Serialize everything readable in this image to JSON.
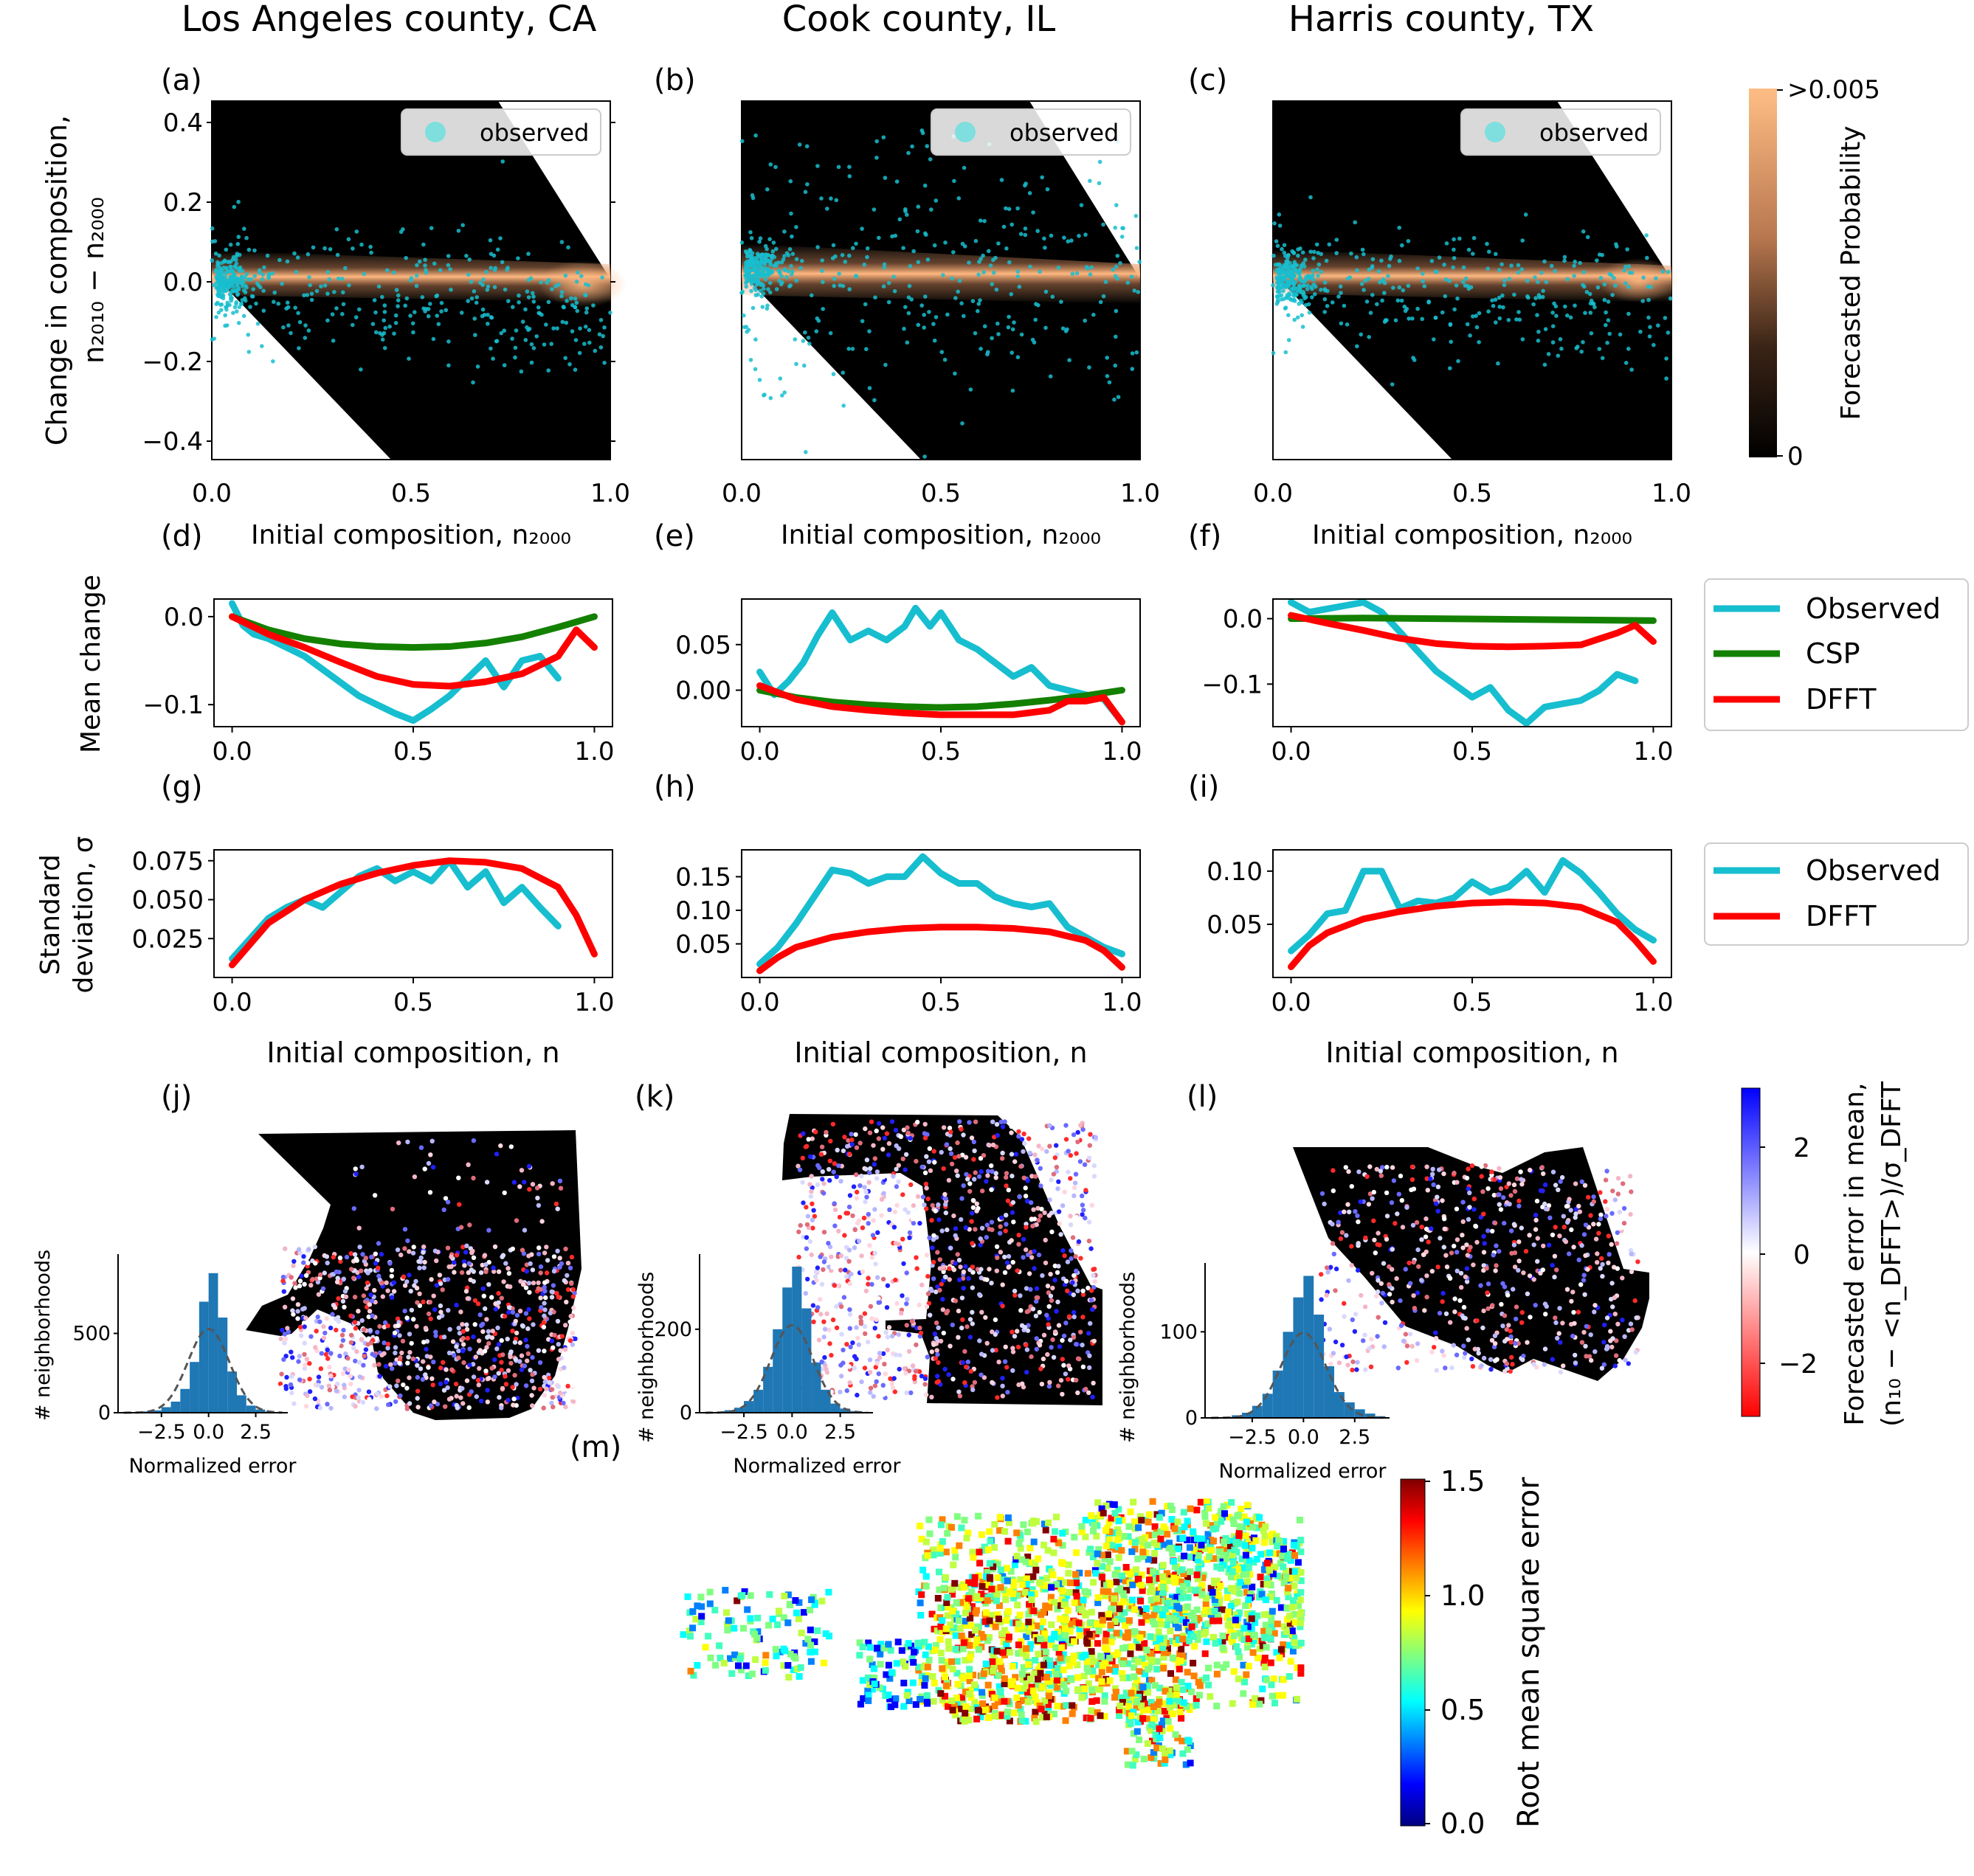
{
  "columns": [
    {
      "title": "Los Angeles county, CA"
    },
    {
      "title": "Cook county, IL"
    },
    {
      "title": "Harris county, TX"
    }
  ],
  "panel_labels": [
    "(a)",
    "(b)",
    "(c)",
    "(d)",
    "(e)",
    "(f)",
    "(g)",
    "(h)",
    "(i)",
    "(j)",
    "(k)",
    "(l)",
    "(m)"
  ],
  "row1": {
    "ylabel_line1": "Change in composition,",
    "ylabel_line2": "n₂₀₁₀ − n₂₀₀₀",
    "xlabel": "Initial composition, n₂₀₀₀",
    "legend": "observed",
    "colorbar_label": "Forecasted Probability",
    "colorbar_top": ">0.005",
    "colorbar_bottom": "0"
  },
  "row2": {
    "ylabel": "Mean change",
    "legend": [
      "Observed",
      "CSP",
      "DFFT"
    ]
  },
  "row3": {
    "ylabel_line1": "Standard",
    "ylabel_line2": "deviation, σ",
    "xlabel": "Initial composition, n",
    "legend": [
      "Observed",
      "DFFT"
    ]
  },
  "row4": {
    "hist_ylabel": "# neighborhoods",
    "hist_xlabel": "Normalized error",
    "colorbar_label_line1": "Forecasted error in mean,",
    "colorbar_label_line2": "(n₁₀ − <n_DFFT>)/σ_DFFT"
  },
  "us_map": {
    "colorbar_label": "Root mean square error"
  },
  "colors": {
    "observed": "#17becf",
    "csp": "#138000",
    "dfft": "#ff0000",
    "heat": "#ffb880",
    "hist": "#1f77b4"
  },
  "chart_data": [
    {
      "type": "heatmap",
      "panel": "(a)",
      "title": "Los Angeles county, CA",
      "xlim": [
        0,
        1
      ],
      "ylim": [
        -0.45,
        0.45
      ],
      "xticks": [
        "0.0",
        "0.5",
        "1.0"
      ],
      "yticks": [
        "−0.4",
        "−0.2",
        "0.0",
        "0.2",
        "0.4"
      ],
      "density_band": [
        [
          0,
          0.0
        ],
        [
          0.5,
          -0.01
        ],
        [
          1,
          -0.02
        ]
      ]
    },
    {
      "type": "heatmap",
      "panel": "(b)",
      "title": "Cook county, IL",
      "xlim": [
        0,
        1
      ],
      "ylim": [
        -0.45,
        0.45
      ],
      "xticks": [
        "0.0",
        "0.5",
        "1.0"
      ],
      "density_band": [
        [
          0,
          0.02
        ],
        [
          0.5,
          0.0
        ],
        [
          1,
          -0.02
        ]
      ]
    },
    {
      "type": "heatmap",
      "panel": "(c)",
      "title": "Harris county, TX",
      "xlim": [
        0,
        1
      ],
      "ylim": [
        -0.45,
        0.45
      ],
      "xticks": [
        "0.0",
        "0.5",
        "1.0"
      ],
      "density_band": [
        [
          0,
          0.01
        ],
        [
          0.5,
          -0.01
        ],
        [
          1,
          -0.02
        ]
      ]
    },
    {
      "type": "line",
      "panel": "(d)",
      "xlim": [
        -0.05,
        1.05
      ],
      "ylim": [
        -0.125,
        0.02
      ],
      "xticks": [
        "0.0",
        "0.5",
        "1.0"
      ],
      "yticks": [
        {
          "v": 0,
          "t": "0.0"
        },
        {
          "v": -0.1,
          "t": "−0.1"
        }
      ],
      "series": [
        {
          "name": "Observed",
          "x": [
            0,
            0.03,
            0.06,
            0.1,
            0.15,
            0.2,
            0.25,
            0.3,
            0.35,
            0.4,
            0.45,
            0.5,
            0.55,
            0.6,
            0.65,
            0.7,
            0.75,
            0.8,
            0.85,
            0.9
          ],
          "y": [
            0.015,
            -0.01,
            -0.02,
            -0.025,
            -0.035,
            -0.045,
            -0.06,
            -0.075,
            -0.09,
            -0.1,
            -0.11,
            -0.118,
            -0.105,
            -0.09,
            -0.07,
            -0.05,
            -0.08,
            -0.05,
            -0.045,
            -0.07
          ]
        },
        {
          "name": "CSP",
          "x": [
            0,
            0.1,
            0.2,
            0.3,
            0.4,
            0.5,
            0.6,
            0.7,
            0.8,
            0.9,
            1.0
          ],
          "y": [
            0.0,
            -0.015,
            -0.025,
            -0.031,
            -0.034,
            -0.035,
            -0.034,
            -0.03,
            -0.023,
            -0.012,
            0.0
          ]
        },
        {
          "name": "DFFT",
          "x": [
            0,
            0.1,
            0.2,
            0.3,
            0.4,
            0.5,
            0.6,
            0.7,
            0.8,
            0.9,
            0.95,
            1.0
          ],
          "y": [
            0.0,
            -0.02,
            -0.035,
            -0.052,
            -0.068,
            -0.077,
            -0.079,
            -0.074,
            -0.065,
            -0.045,
            -0.015,
            -0.035
          ]
        }
      ]
    },
    {
      "type": "line",
      "panel": "(e)",
      "xlim": [
        -0.05,
        1.05
      ],
      "ylim": [
        -0.04,
        0.1
      ],
      "xticks": [
        "0.0",
        "0.5",
        "1.0"
      ],
      "yticks": [
        {
          "v": 0.05,
          "t": "0.05"
        },
        {
          "v": 0,
          "t": "0.00"
        }
      ],
      "series": [
        {
          "name": "Observed",
          "x": [
            0,
            0.04,
            0.08,
            0.12,
            0.16,
            0.2,
            0.25,
            0.3,
            0.35,
            0.4,
            0.43,
            0.47,
            0.5,
            0.55,
            0.6,
            0.65,
            0.7,
            0.75,
            0.8,
            0.85,
            0.9,
            0.95,
            1.0
          ],
          "y": [
            0.02,
            -0.005,
            0.01,
            0.03,
            0.06,
            0.085,
            0.055,
            0.065,
            0.055,
            0.07,
            0.09,
            0.07,
            0.085,
            0.055,
            0.045,
            0.03,
            0.015,
            0.025,
            0.005,
            0.0,
            -0.005,
            -0.01,
            -0.035
          ]
        },
        {
          "name": "CSP",
          "x": [
            0,
            0.1,
            0.2,
            0.3,
            0.4,
            0.5,
            0.6,
            0.7,
            0.8,
            0.9,
            1.0
          ],
          "y": [
            0.0,
            -0.008,
            -0.013,
            -0.016,
            -0.018,
            -0.019,
            -0.018,
            -0.015,
            -0.011,
            -0.006,
            0.0
          ]
        },
        {
          "name": "DFFT",
          "x": [
            0,
            0.1,
            0.2,
            0.3,
            0.4,
            0.5,
            0.6,
            0.7,
            0.8,
            0.85,
            0.9,
            0.95,
            1.0
          ],
          "y": [
            0.005,
            -0.01,
            -0.018,
            -0.022,
            -0.025,
            -0.027,
            -0.027,
            -0.027,
            -0.022,
            -0.012,
            -0.012,
            -0.008,
            -0.035
          ]
        }
      ]
    },
    {
      "type": "line",
      "panel": "(f)",
      "xlim": [
        -0.05,
        1.05
      ],
      "ylim": [
        -0.165,
        0.03
      ],
      "xticks": [
        "0.0",
        "0.5",
        "1.0"
      ],
      "yticks": [
        {
          "v": 0,
          "t": "0.0"
        },
        {
          "v": -0.1,
          "t": "−0.1"
        }
      ],
      "series": [
        {
          "name": "Observed",
          "x": [
            0,
            0.05,
            0.1,
            0.15,
            0.2,
            0.25,
            0.3,
            0.35,
            0.4,
            0.45,
            0.5,
            0.55,
            0.6,
            0.65,
            0.7,
            0.75,
            0.8,
            0.85,
            0.9,
            0.95
          ],
          "y": [
            0.025,
            0.01,
            0.015,
            0.02,
            0.025,
            0.01,
            -0.02,
            -0.05,
            -0.08,
            -0.1,
            -0.12,
            -0.105,
            -0.14,
            -0.16,
            -0.135,
            -0.13,
            -0.125,
            -0.11,
            -0.085,
            -0.095
          ]
        },
        {
          "name": "CSP",
          "x": [
            0,
            0.2,
            0.4,
            0.6,
            0.8,
            1.0
          ],
          "y": [
            0.0,
            0.001,
            0.0,
            -0.001,
            -0.002,
            -0.003
          ]
        },
        {
          "name": "DFFT",
          "x": [
            0,
            0.1,
            0.2,
            0.3,
            0.4,
            0.5,
            0.6,
            0.7,
            0.8,
            0.9,
            0.95,
            1.0
          ],
          "y": [
            0.005,
            -0.007,
            -0.018,
            -0.03,
            -0.038,
            -0.042,
            -0.043,
            -0.042,
            -0.04,
            -0.022,
            -0.01,
            -0.035
          ]
        }
      ]
    },
    {
      "type": "line",
      "panel": "(g)",
      "xlim": [
        -0.05,
        1.05
      ],
      "ylim": [
        0.0,
        0.082
      ],
      "xticks": [
        "0.0",
        "0.5",
        "1.0"
      ],
      "yticks": [
        {
          "v": 0.075,
          "t": "0.075"
        },
        {
          "v": 0.05,
          "t": "0.050"
        },
        {
          "v": 0.025,
          "t": "0.025"
        }
      ],
      "series": [
        {
          "name": "Observed",
          "x": [
            0,
            0.05,
            0.1,
            0.15,
            0.2,
            0.25,
            0.3,
            0.35,
            0.4,
            0.45,
            0.5,
            0.55,
            0.6,
            0.65,
            0.7,
            0.75,
            0.8,
            0.85,
            0.9
          ],
          "y": [
            0.012,
            0.025,
            0.038,
            0.045,
            0.05,
            0.045,
            0.055,
            0.065,
            0.07,
            0.062,
            0.068,
            0.062,
            0.075,
            0.058,
            0.068,
            0.048,
            0.058,
            0.045,
            0.033
          ]
        },
        {
          "name": "DFFT",
          "x": [
            0,
            0.1,
            0.2,
            0.3,
            0.4,
            0.5,
            0.6,
            0.7,
            0.8,
            0.9,
            0.95,
            1.0
          ],
          "y": [
            0.008,
            0.035,
            0.05,
            0.06,
            0.067,
            0.072,
            0.075,
            0.074,
            0.07,
            0.058,
            0.04,
            0.015
          ]
        }
      ]
    },
    {
      "type": "line",
      "panel": "(h)",
      "xlim": [
        -0.05,
        1.05
      ],
      "ylim": [
        0.0,
        0.19
      ],
      "xticks": [
        "0.0",
        "0.5",
        "1.0"
      ],
      "yticks": [
        {
          "v": 0.15,
          "t": "0.15"
        },
        {
          "v": 0.1,
          "t": "0.10"
        },
        {
          "v": 0.05,
          "t": "0.05"
        }
      ],
      "series": [
        {
          "name": "Observed",
          "x": [
            0,
            0.05,
            0.1,
            0.15,
            0.2,
            0.25,
            0.3,
            0.35,
            0.4,
            0.45,
            0.5,
            0.55,
            0.6,
            0.65,
            0.7,
            0.75,
            0.8,
            0.85,
            0.9,
            0.95,
            1.0
          ],
          "y": [
            0.02,
            0.045,
            0.08,
            0.12,
            0.16,
            0.155,
            0.14,
            0.15,
            0.15,
            0.18,
            0.155,
            0.14,
            0.14,
            0.12,
            0.11,
            0.105,
            0.11,
            0.075,
            0.06,
            0.045,
            0.035
          ]
        },
        {
          "name": "DFFT",
          "x": [
            0,
            0.05,
            0.1,
            0.2,
            0.3,
            0.4,
            0.5,
            0.6,
            0.7,
            0.8,
            0.9,
            0.95,
            1.0
          ],
          "y": [
            0.01,
            0.03,
            0.045,
            0.06,
            0.068,
            0.073,
            0.075,
            0.075,
            0.073,
            0.068,
            0.055,
            0.04,
            0.015
          ]
        }
      ]
    },
    {
      "type": "line",
      "panel": "(i)",
      "xlim": [
        -0.05,
        1.05
      ],
      "ylim": [
        0.0,
        0.12
      ],
      "xticks": [
        "0.0",
        "0.5",
        "1.0"
      ],
      "yticks": [
        {
          "v": 0.1,
          "t": "0.10"
        },
        {
          "v": 0.05,
          "t": "0.05"
        }
      ],
      "series": [
        {
          "name": "Observed",
          "x": [
            0,
            0.05,
            0.1,
            0.15,
            0.2,
            0.25,
            0.3,
            0.35,
            0.4,
            0.45,
            0.5,
            0.55,
            0.6,
            0.65,
            0.7,
            0.75,
            0.8,
            0.85,
            0.9,
            0.95,
            1.0
          ],
          "y": [
            0.025,
            0.04,
            0.06,
            0.063,
            0.1,
            0.1,
            0.065,
            0.072,
            0.07,
            0.075,
            0.09,
            0.08,
            0.085,
            0.1,
            0.08,
            0.11,
            0.098,
            0.08,
            0.06,
            0.045,
            0.035
          ]
        },
        {
          "name": "DFFT",
          "x": [
            0,
            0.05,
            0.1,
            0.2,
            0.3,
            0.4,
            0.5,
            0.6,
            0.7,
            0.8,
            0.9,
            0.95,
            1.0
          ],
          "y": [
            0.01,
            0.03,
            0.042,
            0.055,
            0.062,
            0.067,
            0.07,
            0.071,
            0.07,
            0.066,
            0.052,
            0.035,
            0.015
          ]
        }
      ]
    },
    {
      "type": "bar",
      "panel": "(j) inset",
      "xticks": [
        "−2.5",
        "0.0",
        "2.5"
      ],
      "yticks": [
        "0",
        "500"
      ],
      "categories": [
        -3.75,
        -3.25,
        -2.75,
        -2.25,
        -1.75,
        -1.25,
        -0.75,
        -0.25,
        0.25,
        0.75,
        1.25,
        1.75,
        2.25,
        2.75,
        3.25,
        3.75
      ],
      "values": [
        3,
        8,
        15,
        35,
        70,
        150,
        320,
        700,
        880,
        600,
        260,
        110,
        45,
        20,
        8,
        3
      ]
    },
    {
      "type": "bar",
      "panel": "(k) inset",
      "xticks": [
        "−2.5",
        "0.0",
        "2.5"
      ],
      "yticks": [
        "0",
        "200"
      ],
      "categories": [
        -3.75,
        -3.25,
        -2.75,
        -2.25,
        -1.75,
        -1.25,
        -0.75,
        -0.25,
        0.25,
        0.75,
        1.25,
        1.75,
        2.25,
        2.75,
        3.25,
        3.75
      ],
      "values": [
        2,
        6,
        12,
        28,
        55,
        110,
        200,
        300,
        350,
        250,
        120,
        55,
        22,
        10,
        4,
        2
      ]
    },
    {
      "type": "bar",
      "panel": "(l) inset",
      "xticks": [
        "−2.5",
        "0.0",
        "2.5"
      ],
      "yticks": [
        "0",
        "100"
      ],
      "categories": [
        -3.75,
        -3.25,
        -2.75,
        -2.25,
        -1.75,
        -1.25,
        -0.75,
        -0.25,
        0.25,
        0.75,
        1.25,
        1.75,
        2.25,
        2.75,
        3.25,
        3.75
      ],
      "values": [
        1,
        3,
        6,
        14,
        28,
        55,
        100,
        140,
        165,
        120,
        60,
        30,
        18,
        10,
        5,
        2
      ]
    },
    {
      "type": "heatmap",
      "panel": "(j)-(l) colorbar",
      "range": [
        -3,
        3
      ],
      "ticks": [
        "2",
        "0",
        "−2"
      ]
    },
    {
      "type": "heatmap",
      "panel": "(m)",
      "range": [
        0.0,
        1.5
      ],
      "ticks": [
        "1.5",
        "1.0",
        "0.5",
        "0.0"
      ]
    }
  ]
}
